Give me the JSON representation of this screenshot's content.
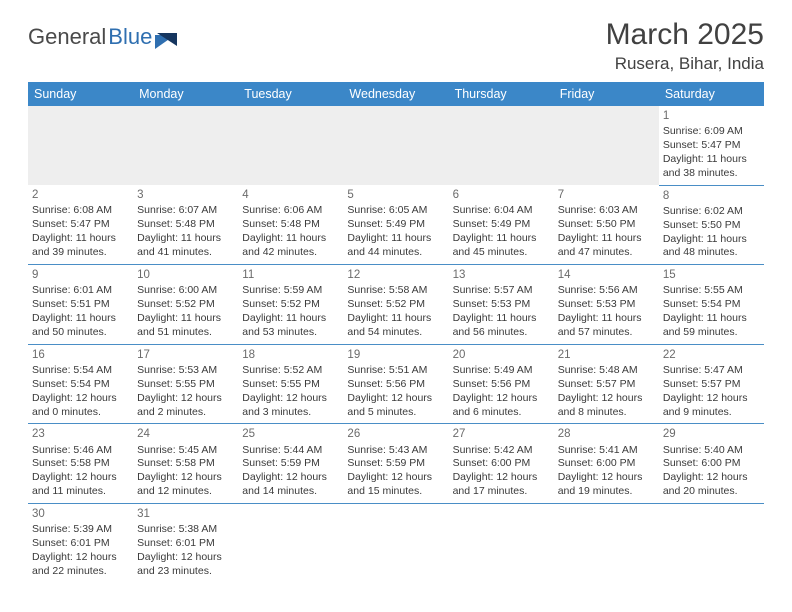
{
  "logo": {
    "word1": "General",
    "word2": "Blue"
  },
  "header": {
    "month": "March 2025",
    "location": "Rusera, Bihar, India"
  },
  "colors": {
    "header_bg": "#3b87c8",
    "header_text": "#ffffff",
    "rule": "#4a8ec6",
    "blank_bg": "#eeeeee",
    "body_text": "#3a3a3a",
    "daynum": "#6b6b6b",
    "logo_gray": "#4a4a4a",
    "logo_blue": "#2f6fb0"
  },
  "weekdays": [
    "Sunday",
    "Monday",
    "Tuesday",
    "Wednesday",
    "Thursday",
    "Friday",
    "Saturday"
  ],
  "days": {
    "d1": {
      "n": "1",
      "sr": "Sunrise: 6:09 AM",
      "ss": "Sunset: 5:47 PM",
      "dl1": "Daylight: 11 hours",
      "dl2": "and 38 minutes."
    },
    "d2": {
      "n": "2",
      "sr": "Sunrise: 6:08 AM",
      "ss": "Sunset: 5:47 PM",
      "dl1": "Daylight: 11 hours",
      "dl2": "and 39 minutes."
    },
    "d3": {
      "n": "3",
      "sr": "Sunrise: 6:07 AM",
      "ss": "Sunset: 5:48 PM",
      "dl1": "Daylight: 11 hours",
      "dl2": "and 41 minutes."
    },
    "d4": {
      "n": "4",
      "sr": "Sunrise: 6:06 AM",
      "ss": "Sunset: 5:48 PM",
      "dl1": "Daylight: 11 hours",
      "dl2": "and 42 minutes."
    },
    "d5": {
      "n": "5",
      "sr": "Sunrise: 6:05 AM",
      "ss": "Sunset: 5:49 PM",
      "dl1": "Daylight: 11 hours",
      "dl2": "and 44 minutes."
    },
    "d6": {
      "n": "6",
      "sr": "Sunrise: 6:04 AM",
      "ss": "Sunset: 5:49 PM",
      "dl1": "Daylight: 11 hours",
      "dl2": "and 45 minutes."
    },
    "d7": {
      "n": "7",
      "sr": "Sunrise: 6:03 AM",
      "ss": "Sunset: 5:50 PM",
      "dl1": "Daylight: 11 hours",
      "dl2": "and 47 minutes."
    },
    "d8": {
      "n": "8",
      "sr": "Sunrise: 6:02 AM",
      "ss": "Sunset: 5:50 PM",
      "dl1": "Daylight: 11 hours",
      "dl2": "and 48 minutes."
    },
    "d9": {
      "n": "9",
      "sr": "Sunrise: 6:01 AM",
      "ss": "Sunset: 5:51 PM",
      "dl1": "Daylight: 11 hours",
      "dl2": "and 50 minutes."
    },
    "d10": {
      "n": "10",
      "sr": "Sunrise: 6:00 AM",
      "ss": "Sunset: 5:52 PM",
      "dl1": "Daylight: 11 hours",
      "dl2": "and 51 minutes."
    },
    "d11": {
      "n": "11",
      "sr": "Sunrise: 5:59 AM",
      "ss": "Sunset: 5:52 PM",
      "dl1": "Daylight: 11 hours",
      "dl2": "and 53 minutes."
    },
    "d12": {
      "n": "12",
      "sr": "Sunrise: 5:58 AM",
      "ss": "Sunset: 5:52 PM",
      "dl1": "Daylight: 11 hours",
      "dl2": "and 54 minutes."
    },
    "d13": {
      "n": "13",
      "sr": "Sunrise: 5:57 AM",
      "ss": "Sunset: 5:53 PM",
      "dl1": "Daylight: 11 hours",
      "dl2": "and 56 minutes."
    },
    "d14": {
      "n": "14",
      "sr": "Sunrise: 5:56 AM",
      "ss": "Sunset: 5:53 PM",
      "dl1": "Daylight: 11 hours",
      "dl2": "and 57 minutes."
    },
    "d15": {
      "n": "15",
      "sr": "Sunrise: 5:55 AM",
      "ss": "Sunset: 5:54 PM",
      "dl1": "Daylight: 11 hours",
      "dl2": "and 59 minutes."
    },
    "d16": {
      "n": "16",
      "sr": "Sunrise: 5:54 AM",
      "ss": "Sunset: 5:54 PM",
      "dl1": "Daylight: 12 hours",
      "dl2": "and 0 minutes."
    },
    "d17": {
      "n": "17",
      "sr": "Sunrise: 5:53 AM",
      "ss": "Sunset: 5:55 PM",
      "dl1": "Daylight: 12 hours",
      "dl2": "and 2 minutes."
    },
    "d18": {
      "n": "18",
      "sr": "Sunrise: 5:52 AM",
      "ss": "Sunset: 5:55 PM",
      "dl1": "Daylight: 12 hours",
      "dl2": "and 3 minutes."
    },
    "d19": {
      "n": "19",
      "sr": "Sunrise: 5:51 AM",
      "ss": "Sunset: 5:56 PM",
      "dl1": "Daylight: 12 hours",
      "dl2": "and 5 minutes."
    },
    "d20": {
      "n": "20",
      "sr": "Sunrise: 5:49 AM",
      "ss": "Sunset: 5:56 PM",
      "dl1": "Daylight: 12 hours",
      "dl2": "and 6 minutes."
    },
    "d21": {
      "n": "21",
      "sr": "Sunrise: 5:48 AM",
      "ss": "Sunset: 5:57 PM",
      "dl1": "Daylight: 12 hours",
      "dl2": "and 8 minutes."
    },
    "d22": {
      "n": "22",
      "sr": "Sunrise: 5:47 AM",
      "ss": "Sunset: 5:57 PM",
      "dl1": "Daylight: 12 hours",
      "dl2": "and 9 minutes."
    },
    "d23": {
      "n": "23",
      "sr": "Sunrise: 5:46 AM",
      "ss": "Sunset: 5:58 PM",
      "dl1": "Daylight: 12 hours",
      "dl2": "and 11 minutes."
    },
    "d24": {
      "n": "24",
      "sr": "Sunrise: 5:45 AM",
      "ss": "Sunset: 5:58 PM",
      "dl1": "Daylight: 12 hours",
      "dl2": "and 12 minutes."
    },
    "d25": {
      "n": "25",
      "sr": "Sunrise: 5:44 AM",
      "ss": "Sunset: 5:59 PM",
      "dl1": "Daylight: 12 hours",
      "dl2": "and 14 minutes."
    },
    "d26": {
      "n": "26",
      "sr": "Sunrise: 5:43 AM",
      "ss": "Sunset: 5:59 PM",
      "dl1": "Daylight: 12 hours",
      "dl2": "and 15 minutes."
    },
    "d27": {
      "n": "27",
      "sr": "Sunrise: 5:42 AM",
      "ss": "Sunset: 6:00 PM",
      "dl1": "Daylight: 12 hours",
      "dl2": "and 17 minutes."
    },
    "d28": {
      "n": "28",
      "sr": "Sunrise: 5:41 AM",
      "ss": "Sunset: 6:00 PM",
      "dl1": "Daylight: 12 hours",
      "dl2": "and 19 minutes."
    },
    "d29": {
      "n": "29",
      "sr": "Sunrise: 5:40 AM",
      "ss": "Sunset: 6:00 PM",
      "dl1": "Daylight: 12 hours",
      "dl2": "and 20 minutes."
    },
    "d30": {
      "n": "30",
      "sr": "Sunrise: 5:39 AM",
      "ss": "Sunset: 6:01 PM",
      "dl1": "Daylight: 12 hours",
      "dl2": "and 22 minutes."
    },
    "d31": {
      "n": "31",
      "sr": "Sunrise: 5:38 AM",
      "ss": "Sunset: 6:01 PM",
      "dl1": "Daylight: 12 hours",
      "dl2": "and 23 minutes."
    }
  }
}
